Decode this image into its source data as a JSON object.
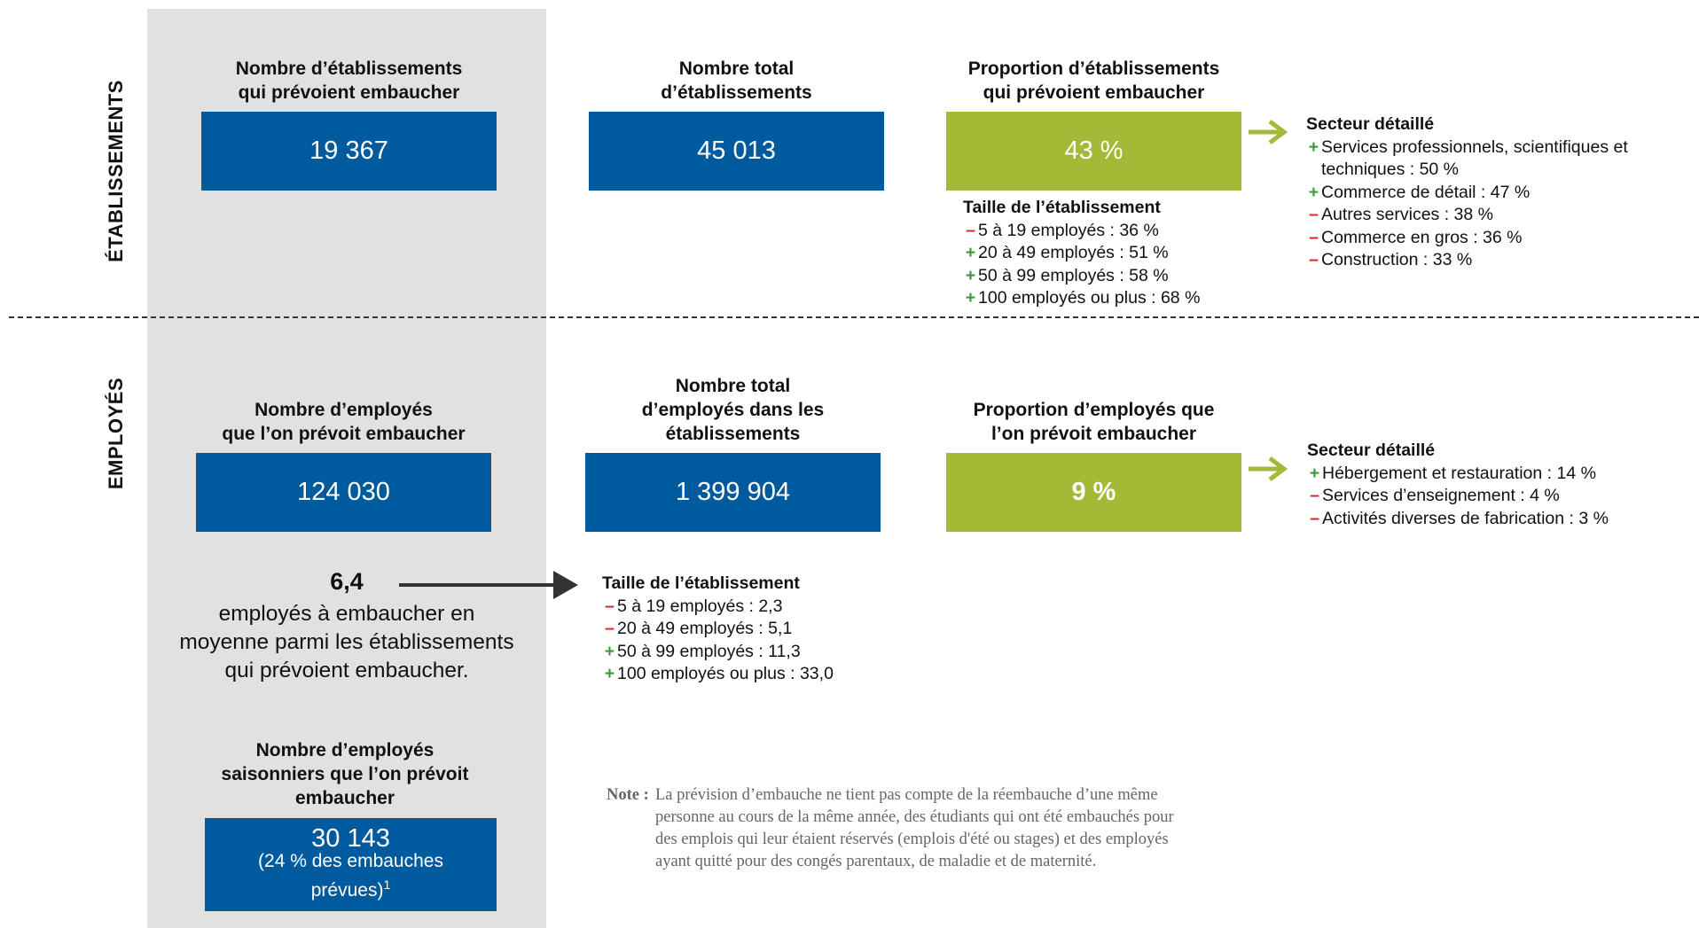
{
  "sections": [
    {
      "label": "ÉTABLISSEMENTS",
      "cards": [
        {
          "title": [
            "Nombre d’établissements",
            "qui prévoient embaucher"
          ],
          "value": "19 367"
        },
        {
          "title": [
            "Nombre total",
            "d’établissements"
          ],
          "value": "45 013"
        },
        {
          "title": [
            "Proportion d’établissements",
            "qui prévoient embaucher"
          ],
          "value": "43 %"
        }
      ],
      "size": {
        "title": "Taille de l’établissement",
        "items": [
          {
            "sign": "–",
            "text": "5 à 19 employés : 36 %"
          },
          {
            "sign": "+",
            "text": "20 à 49 employés : 51 %"
          },
          {
            "sign": "+",
            "text": "50 à 99 employés : 58 %"
          },
          {
            "sign": "+",
            "text": "100 employés ou plus : 68 %"
          }
        ]
      },
      "sector": {
        "title": "Secteur détaillé",
        "items": [
          {
            "sign": "+",
            "text": "Services professionnels, scientifiques et techniques : 50 %"
          },
          {
            "sign": "+",
            "text": "Commerce de détail : 47 %"
          },
          {
            "sign": "–",
            "text": "Autres services : 38 %"
          },
          {
            "sign": "–",
            "text": "Commerce en gros : 36 %"
          },
          {
            "sign": "–",
            "text": "Construction : 33 %"
          }
        ]
      }
    },
    {
      "label": "EMPLOYÉS",
      "cards": [
        {
          "title": [
            "Nombre d’employés",
            "que l’on prévoit embaucher"
          ],
          "value": "124 030"
        },
        {
          "title": [
            "Nombre total",
            "d’employés dans les",
            "établissements"
          ],
          "value": "1 399 904"
        },
        {
          "title": [
            "Proportion d’employés que",
            "l’on prévoit embaucher"
          ],
          "value": "9 %"
        }
      ],
      "size": {
        "title": "Taille de l’établissement",
        "items": [
          {
            "sign": "–",
            "text": "5 à 19 employés : 2,3"
          },
          {
            "sign": "–",
            "text": "20 à 49 employés : 5,1"
          },
          {
            "sign": "+",
            "text": "50 à 99 employés : 11,3"
          },
          {
            "sign": "+",
            "text": "100 employés ou plus : 33,0"
          }
        ]
      },
      "sector": {
        "title": "Secteur détaillé",
        "items": [
          {
            "sign": "+",
            "text": "Hébergement et restauration : 14 %"
          },
          {
            "sign": "–",
            "text": "Services d’enseignement : 4 %"
          },
          {
            "sign": "–",
            "text": "Activités diverses de fabrication : 3 %"
          }
        ]
      }
    }
  ],
  "average": {
    "value": "6,4",
    "text": [
      "employés à embaucher en",
      "moyenne parmi les établissements",
      "qui prévoient embaucher."
    ]
  },
  "seasonal": {
    "title": [
      "Nombre d’employés",
      "saisonniers que l’on prévoit",
      "embaucher"
    ],
    "value": "30 143",
    "detail": [
      "(24 % des embauches",
      "prévues)"
    ],
    "footnote": "1"
  },
  "note": {
    "label": "Note :",
    "lines": [
      "La prévision d’embauche ne tient pas compte de la réembauche d’une même",
      "personne au cours de la même année, des étudiants qui ont été embauchés pour",
      "des emplois qui leur étaient réservés (emplois d'été ou stages) et des employés",
      "ayant quitté pour des congés parentaux, de maladie et de maternité."
    ]
  }
}
